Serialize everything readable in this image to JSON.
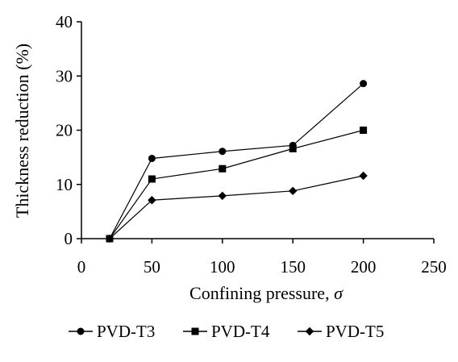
{
  "chart_data": {
    "type": "line",
    "title": "",
    "xlabel": "Confining pressure, ",
    "xlabel_symbol": "σ",
    "ylabel": "Thickness reduction (%)",
    "xlim": [
      0,
      250
    ],
    "ylim": [
      0,
      40
    ],
    "xticks": [
      0,
      50,
      100,
      150,
      200,
      250
    ],
    "yticks": [
      0,
      10,
      20,
      30,
      40
    ],
    "grid": false,
    "legend_position": "bottom",
    "series": [
      {
        "name": "PVD-T3",
        "marker": "circle",
        "x": [
          20,
          50,
          100,
          150,
          200
        ],
        "y": [
          0,
          14.8,
          16.1,
          17.2,
          28.6
        ]
      },
      {
        "name": "PVD-T4",
        "marker": "square",
        "x": [
          20,
          50,
          100,
          150,
          200
        ],
        "y": [
          0,
          11.0,
          12.9,
          16.6,
          20.0
        ]
      },
      {
        "name": "PVD-T5",
        "marker": "diamond",
        "x": [
          20,
          50,
          100,
          150,
          200
        ],
        "y": [
          0,
          7.1,
          7.9,
          8.8,
          11.6
        ]
      }
    ],
    "colors": {
      "line": "#000000",
      "marker": "#000000"
    }
  }
}
